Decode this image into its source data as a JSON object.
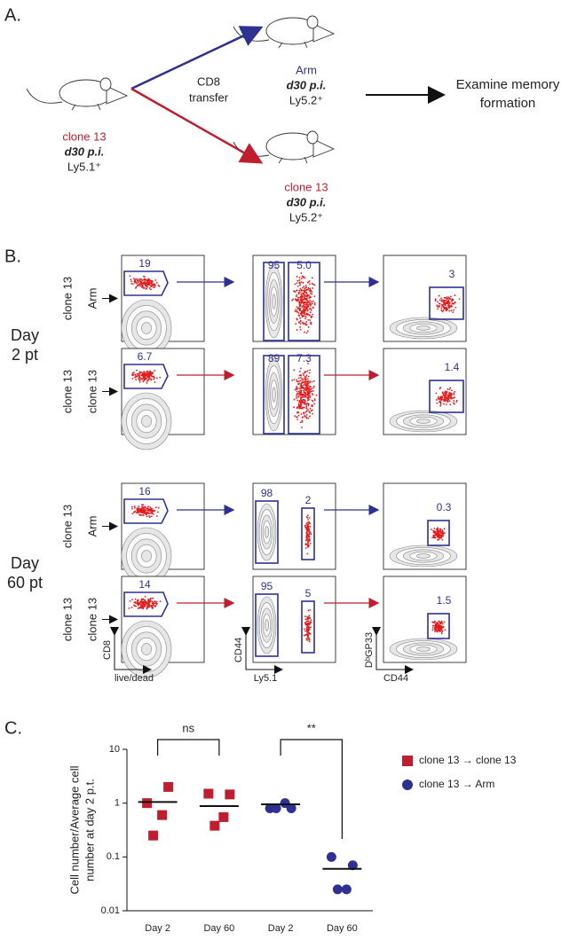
{
  "panel_a": {
    "label": "A.",
    "donor": {
      "strain": "clone 13",
      "time": "d30 p.i.",
      "marker": "Ly5.1⁺"
    },
    "transfer": [
      "CD8",
      "transfer"
    ],
    "recipients": [
      {
        "strain": "Arm",
        "time": "d30 p.i.",
        "marker": "Ly5.2⁺"
      },
      {
        "strain": "clone 13",
        "time": "d30 p.i.",
        "marker": "Ly5.2⁺"
      }
    ],
    "outcome": [
      "Examine memory",
      "formation"
    ]
  },
  "panel_b": {
    "label": "B.",
    "groups": [
      [
        "Day",
        "2 pt"
      ],
      [
        "Day",
        "60 pt"
      ]
    ],
    "rows": [
      {
        "donor": "clone 13",
        "recipient": "Arm",
        "color": "#2e3192",
        "gates": [
          "19",
          "95",
          "5.0",
          "3"
        ]
      },
      {
        "donor": "clone 13",
        "recipient": "clone 13",
        "color": "#be1e2d",
        "gates": [
          "6.7",
          "89",
          "7.3",
          "1.4"
        ]
      },
      {
        "donor": "clone 13",
        "recipient": "Arm",
        "color": "#2e3192",
        "gates": [
          "16",
          "98",
          "2",
          "0.3"
        ]
      },
      {
        "donor": "clone 13",
        "recipient": "clone 13",
        "color": "#be1e2d",
        "gates": [
          "14",
          "95",
          "5",
          "1.5"
        ]
      }
    ],
    "axes": [
      {
        "y": "CD8",
        "x": "live/dead"
      },
      {
        "y": "CD44",
        "x": "Ly5.1"
      },
      {
        "y": "DᵇGP33",
        "x": "CD44"
      }
    ]
  },
  "chart_data": {
    "type": "scatter",
    "label": "C.",
    "ylabel": [
      "Cell number/Average cell",
      "number at day 2 p.t."
    ],
    "categories": [
      "Day 2",
      "Day 60",
      "Day 2",
      "Day 60"
    ],
    "log_y": true,
    "ylim": [
      0.01,
      10
    ],
    "yticks": [
      0.01,
      0.1,
      1,
      10
    ],
    "series": [
      {
        "name": "clone 13 → clone 13",
        "color": "#be1e2d",
        "marker": "square",
        "values": [
          [
            1.0,
            2.0,
            0.6,
            0.25
          ],
          [
            1.5,
            1.45,
            0.55,
            0.38
          ],
          null,
          null
        ],
        "means": [
          1.05,
          0.88,
          null,
          null
        ]
      },
      {
        "name": "clone 13 → Arm",
        "color": "#2e3192",
        "marker": "circle",
        "values": [
          null,
          null,
          [
            0.8,
            0.8,
            1.0,
            0.8
          ],
          [
            0.1,
            0.07,
            0.025,
            0.025
          ]
        ],
        "means": [
          null,
          null,
          0.95,
          0.06
        ]
      }
    ],
    "annotations": [
      "ns",
      "**"
    ]
  }
}
